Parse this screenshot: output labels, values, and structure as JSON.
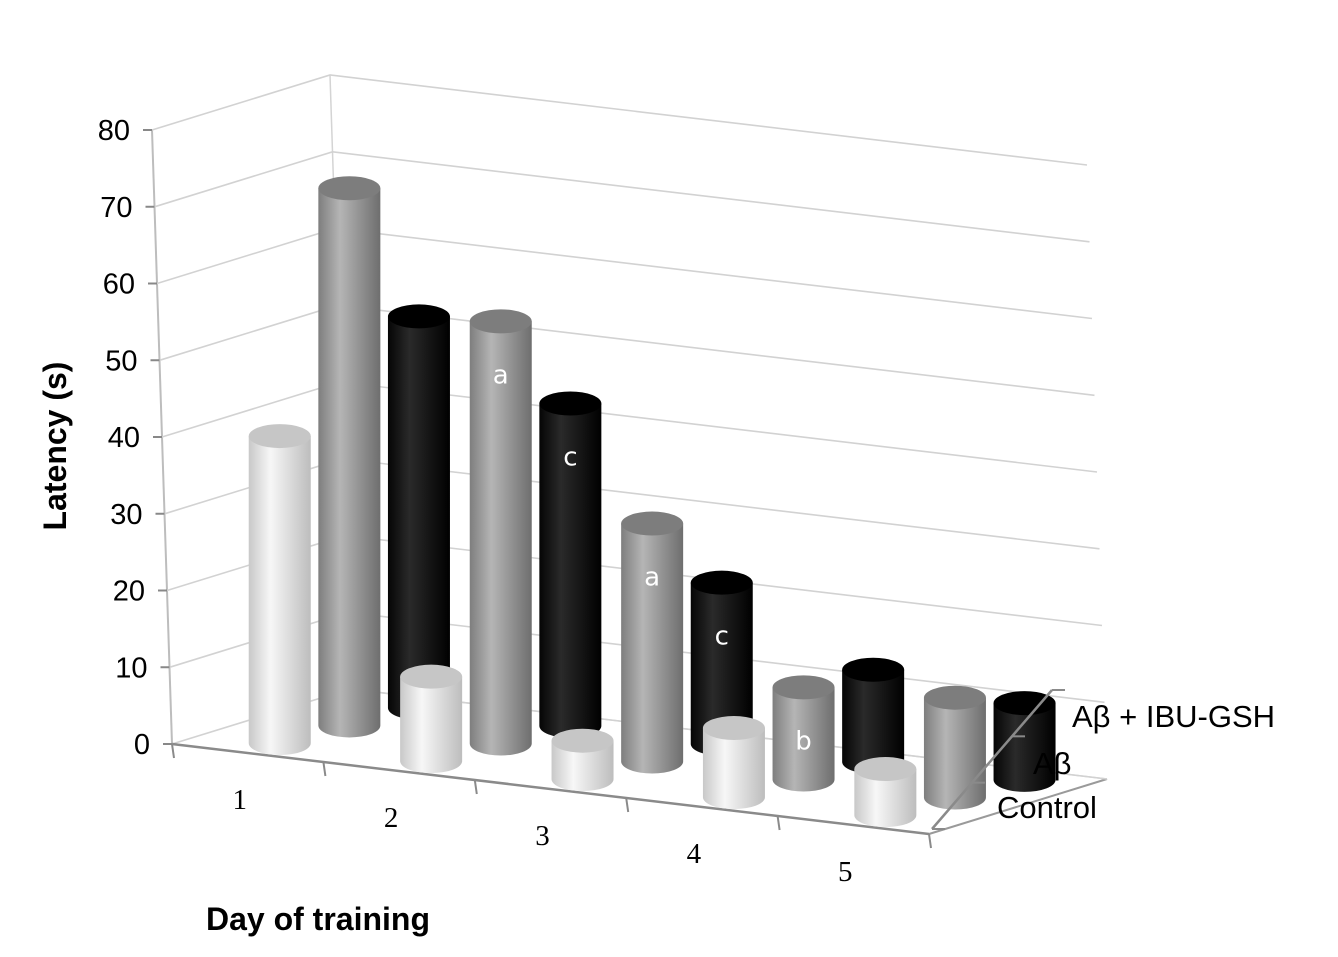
{
  "chart_data": {
    "type": "bar",
    "style": "3d-cylinder",
    "xlabel": "Day of training",
    "ylabel": "Latency (s)",
    "categories": [
      "1",
      "2",
      "3",
      "4",
      "5"
    ],
    "yticks": [
      "0",
      "10",
      "20",
      "30",
      "40",
      "50",
      "60",
      "70",
      "80"
    ],
    "ylim": [
      0,
      80
    ],
    "grid": true,
    "series": [
      {
        "name": "Control",
        "color": "#e4e4e4",
        "values": [
          40,
          11,
          5,
          9,
          6
        ],
        "labels": [
          "",
          "",
          "",
          "",
          ""
        ]
      },
      {
        "name": "Aβ",
        "color": "#9b9b9b",
        "values": [
          70,
          55,
          31,
          12,
          13
        ],
        "labels": [
          "",
          "a",
          "a",
          "b",
          ""
        ]
      },
      {
        "name": "Aβ + IBU-GSH",
        "color": "#161616",
        "values": [
          51,
          42,
          21,
          12,
          10
        ],
        "labels": [
          "",
          "c",
          "c",
          "",
          ""
        ]
      }
    ]
  }
}
